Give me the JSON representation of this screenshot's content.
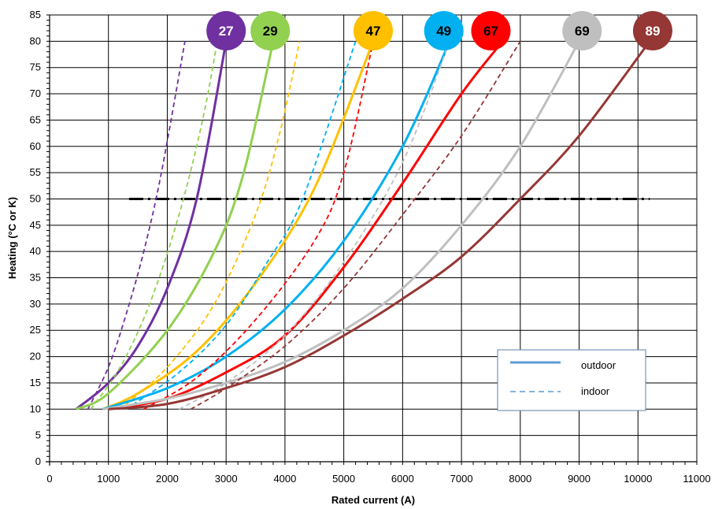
{
  "chart_data": {
    "type": "line",
    "title": "",
    "xlabel": "Rated current (A)",
    "ylabel": "Heating (°C or K)",
    "xlim": [
      0,
      11000
    ],
    "ylim": [
      0,
      85
    ],
    "xticks": [
      0,
      1000,
      2000,
      3000,
      4000,
      5000,
      6000,
      7000,
      8000,
      9000,
      10000,
      11000
    ],
    "yticks": [
      0,
      5,
      10,
      15,
      20,
      25,
      30,
      35,
      40,
      45,
      50,
      55,
      60,
      65,
      70,
      75,
      80,
      85
    ],
    "grid": true,
    "legend": {
      "position": "bottom-right",
      "entries": [
        {
          "label": "outdoor",
          "style": "solid",
          "color": "#5b9bd5"
        },
        {
          "label": "indoor",
          "style": "dashed",
          "color": "#5b9bd5"
        }
      ]
    },
    "reference_line": {
      "y": 50,
      "x_range": [
        1350,
        10200
      ],
      "style": "dash-dot",
      "color": "#000000"
    },
    "series": [
      {
        "name": "27",
        "color": "#7030a0",
        "style": "solid",
        "x": [
          450,
          1000,
          1500,
          2000,
          2500,
          3000
        ],
        "y": [
          10,
          15,
          22,
          33,
          50,
          80
        ]
      },
      {
        "name": "27",
        "color": "#7030a0",
        "style": "dashed",
        "x": [
          650,
          1000,
          1300,
          1600,
          1900,
          2300
        ],
        "y": [
          10,
          18,
          28,
          40,
          55,
          80
        ]
      },
      {
        "name": "29",
        "color": "#92d050",
        "style": "solid",
        "x": [
          450,
          1000,
          2000,
          2800,
          3300,
          3800
        ],
        "y": [
          10,
          13,
          25,
          40,
          55,
          80
        ]
      },
      {
        "name": "29",
        "color": "#92d050",
        "style": "dashed",
        "x": [
          700,
          1200,
          1700,
          2200,
          2600,
          2850
        ],
        "y": [
          10,
          18,
          30,
          47,
          65,
          80
        ]
      },
      {
        "name": "47",
        "color": "#ffc000",
        "style": "solid",
        "x": [
          900,
          1500,
          2500,
          3500,
          4500,
          5500
        ],
        "y": [
          10,
          13,
          21,
          34,
          52,
          80
        ]
      },
      {
        "name": "47",
        "color": "#ffc000",
        "style": "dashed",
        "x": [
          1200,
          2000,
          2800,
          3500,
          3900,
          4250
        ],
        "y": [
          10,
          18,
          30,
          47,
          62,
          80
        ]
      },
      {
        "name": "49",
        "color": "#00b0f0",
        "style": "solid",
        "x": [
          900,
          2000,
          3000,
          4000,
          5000,
          6000,
          6800
        ],
        "y": [
          10,
          14,
          20,
          29,
          42,
          60,
          80
        ]
      },
      {
        "name": "49",
        "color": "#00b0f0",
        "style": "dashed",
        "x": [
          1300,
          2200,
          3000,
          3700,
          4300,
          5200
        ],
        "y": [
          10,
          17,
          26,
          38,
          50,
          80
        ]
      },
      {
        "name": "67",
        "color": "#ff0000",
        "style": "solid",
        "x": [
          1000,
          2000,
          3000,
          4000,
          5000,
          6000,
          7000,
          7700
        ],
        "y": [
          10,
          12,
          17,
          24,
          37,
          53,
          70,
          80
        ]
      },
      {
        "name": "67",
        "color": "#ff0000",
        "style": "dashed",
        "x": [
          1600,
          2500,
          3500,
          4500,
          5000,
          5500
        ],
        "y": [
          10,
          16,
          27,
          42,
          55,
          80
        ]
      },
      {
        "name": "69",
        "color": "#bfbfbf",
        "style": "solid",
        "x": [
          900,
          2000,
          3000,
          4000,
          5000,
          6000,
          7000,
          8000,
          9000
        ],
        "y": [
          10,
          12,
          15,
          19,
          25,
          33,
          45,
          60,
          80
        ]
      },
      {
        "name": "69",
        "color": "#bfbfbf",
        "style": "dashed",
        "x": [
          2200,
          3000,
          4000,
          5000,
          6000,
          6800
        ],
        "y": [
          10,
          15,
          24,
          38,
          57,
          80
        ]
      },
      {
        "name": "89",
        "color": "#953735",
        "style": "solid",
        "x": [
          1000,
          2000,
          3000,
          4000,
          5000,
          6000,
          7000,
          8000,
          9000,
          10200
        ],
        "y": [
          10,
          11,
          14,
          18,
          24,
          31,
          39,
          50,
          62,
          80
        ]
      },
      {
        "name": "89",
        "color": "#953735",
        "style": "dashed",
        "x": [
          2400,
          3000,
          4000,
          5000,
          6000,
          7000,
          8000
        ],
        "y": [
          10,
          14,
          22,
          33,
          47,
          62,
          80
        ]
      }
    ],
    "badges": [
      {
        "label": "27",
        "color": "#7030a0",
        "text_color": "#ffffff",
        "x": 3000,
        "y": 82
      },
      {
        "label": "29",
        "color": "#92d050",
        "text_color": "#000000",
        "x": 3750,
        "y": 82
      },
      {
        "label": "47",
        "color": "#ffc000",
        "text_color": "#000000",
        "x": 5500,
        "y": 82
      },
      {
        "label": "49",
        "color": "#00b0f0",
        "text_color": "#000000",
        "x": 6700,
        "y": 82
      },
      {
        "label": "67",
        "color": "#ff0000",
        "text_color": "#000000",
        "x": 7500,
        "y": 82
      },
      {
        "label": "69",
        "color": "#bfbfbf",
        "text_color": "#000000",
        "x": 9050,
        "y": 82
      },
      {
        "label": "89",
        "color": "#953735",
        "text_color": "#ffffff",
        "x": 10250,
        "y": 82
      }
    ]
  }
}
